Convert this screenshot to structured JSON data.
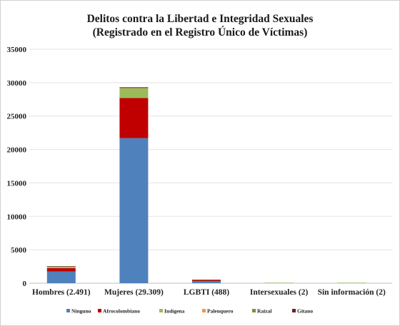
{
  "chart_data": {
    "type": "bar",
    "stacked": true,
    "title": "Delitos contra la Libertad e Integridad Sexuales",
    "subtitle": "(Registrado en el Registro Único de Víctimas)",
    "categories": [
      "Hombres (2.491)",
      "Mujeres (29.309)",
      "LGBTI (488)",
      "Intersexuales (2)",
      "Sin información (2)"
    ],
    "series": [
      {
        "name": "Ninguno",
        "color": "#4f81bd",
        "values": [
          1750,
          21700,
          320,
          1,
          1
        ]
      },
      {
        "name": "Afrocolombiano",
        "color": "#c00000",
        "values": [
          500,
          6000,
          110,
          0,
          0
        ]
      },
      {
        "name": "Indígena",
        "color": "#9bbb59",
        "values": [
          200,
          1400,
          40,
          1,
          1
        ]
      },
      {
        "name": "Palenquero",
        "color": "#f79646",
        "values": [
          5,
          20,
          2,
          0,
          0
        ]
      },
      {
        "name": "Raizal",
        "color": "#77933c",
        "values": [
          15,
          100,
          6,
          0,
          0
        ]
      },
      {
        "name": "Gitano",
        "color": "#632523",
        "values": [
          21,
          89,
          10,
          0,
          0
        ]
      }
    ],
    "yticks": [
      "0",
      "5000",
      "10000",
      "15000",
      "20000",
      "25000",
      "30000",
      "35000"
    ],
    "ylim": [
      0,
      35000
    ],
    "grid": true,
    "legend": "bottom"
  }
}
